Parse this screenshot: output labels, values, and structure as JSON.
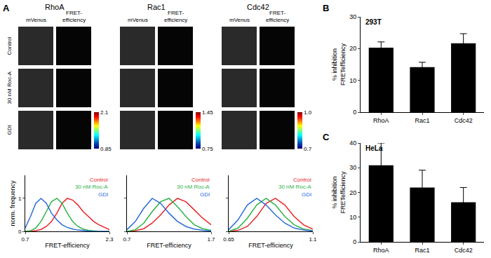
{
  "chart_data": [
    {
      "type": "image",
      "label": "A",
      "title": "RhoA",
      "columns": [
        "mVenus",
        "FRET-efficiency"
      ],
      "rows": [
        "Control",
        "30 nM Roc-A",
        "GDI"
      ],
      "colorbar": {
        "range": [
          0.85,
          2.1
        ],
        "ticks": [
          0.85,
          2.1
        ]
      }
    },
    {
      "type": "image",
      "title": "Rac1",
      "columns": [
        "mVenus",
        "FRET-efficiency"
      ],
      "colorbar": {
        "range": [
          0.75,
          1.45
        ],
        "ticks": [
          0.75,
          1.45
        ]
      }
    },
    {
      "type": "image",
      "title": "Cdc42",
      "columns": [
        "mVenus",
        "FRET-efficiency"
      ],
      "colorbar": {
        "range": [
          0.7,
          1.0
        ],
        "ticks": [
          0.7,
          {
            "value": 1,
            "label": "1.0"
          }
        ]
      }
    },
    {
      "type": "line",
      "x": [
        0.7,
        0.8,
        0.9,
        1.0,
        1.1,
        1.2,
        1.3,
        1.4,
        1.5,
        1.6,
        1.7,
        1.8,
        1.9,
        2.0,
        2.1,
        2.2,
        2.3
      ],
      "series": [
        {
          "name": "Control",
          "color": "#e8262a",
          "values": [
            0,
            0,
            0.02,
            0.06,
            0.15,
            0.3,
            0.55,
            0.85,
            1.0,
            0.95,
            0.8,
            0.6,
            0.45,
            0.3,
            0.2,
            0.12,
            0.05
          ]
        },
        {
          "name": "30 nM Roc-A",
          "color": "#2eb34a",
          "values": [
            0,
            0.02,
            0.1,
            0.3,
            0.6,
            0.9,
            1.0,
            0.85,
            0.55,
            0.3,
            0.15,
            0.07,
            0.03,
            0.01,
            0,
            0,
            0
          ]
        },
        {
          "name": "GDI",
          "color": "#2b6cd8",
          "values": [
            0.1,
            0.45,
            0.85,
            1.0,
            0.85,
            0.55,
            0.35,
            0.2,
            0.12,
            0.07,
            0.04,
            0.02,
            0.01,
            0,
            0,
            0,
            0
          ]
        }
      ],
      "xlim": [
        0.7,
        2.3
      ],
      "xticks": [
        0.7,
        2.3
      ],
      "ylim": [
        0,
        1.7
      ],
      "yticks": [
        0,
        1
      ],
      "xlabel": "FRET-efficiency",
      "ylabel": "norm. frequency"
    },
    {
      "type": "line",
      "x": [
        0.7,
        0.8,
        0.9,
        1.0,
        1.1,
        1.2,
        1.3,
        1.4,
        1.5,
        1.6,
        1.7
      ],
      "series": [
        {
          "name": "Control",
          "color": "#e8262a",
          "values": [
            0,
            0.02,
            0.08,
            0.25,
            0.5,
            0.8,
            1.0,
            0.9,
            0.65,
            0.4,
            0.2
          ]
        },
        {
          "name": "30 nM Roc-A",
          "color": "#2eb34a",
          "values": [
            0,
            0.05,
            0.25,
            0.6,
            0.9,
            1.0,
            0.75,
            0.45,
            0.2,
            0.08,
            0.03
          ]
        },
        {
          "name": "GDI",
          "color": "#2b6cd8",
          "values": [
            0.05,
            0.3,
            0.7,
            1.0,
            0.85,
            0.55,
            0.3,
            0.15,
            0.07,
            0.03,
            0.01
          ]
        }
      ],
      "xlim": [
        0.7,
        1.7
      ],
      "xticks": [
        0.7,
        1.7
      ],
      "ylim": [
        0,
        1.7
      ],
      "yticks": [
        0,
        1
      ],
      "tick_labels": "x",
      "xlabel": "FRET-efficiency"
    },
    {
      "type": "line",
      "x": [
        0.65,
        0.7,
        0.75,
        0.8,
        0.85,
        0.9,
        0.95,
        1.0,
        1.05,
        1.1
      ],
      "series": [
        {
          "name": "Control",
          "color": "#e8262a",
          "values": [
            0,
            0.03,
            0.15,
            0.45,
            0.85,
            1.0,
            0.8,
            0.45,
            0.2,
            0.07
          ]
        },
        {
          "name": "30 nM Roc-A",
          "color": "#2eb34a",
          "values": [
            0,
            0.1,
            0.4,
            0.8,
            1.0,
            0.8,
            0.45,
            0.2,
            0.07,
            0.02
          ]
        },
        {
          "name": "GDI",
          "color": "#2b6cd8",
          "values": [
            0.05,
            0.35,
            0.8,
            1.0,
            0.8,
            0.5,
            0.25,
            0.1,
            0.04,
            0.01
          ]
        }
      ],
      "xlim": [
        0.65,
        1.1
      ],
      "xticks": [
        0.65,
        1.1
      ],
      "ylim": [
        0,
        1.7
      ],
      "yticks": [
        0,
        1
      ],
      "tick_labels": "x",
      "xlabel": "FRET-efficiency"
    },
    {
      "type": "bar",
      "label": "B",
      "title": "293T",
      "categories": [
        "RhoA",
        "Rac1",
        "Cdc42"
      ],
      "values": [
        20.3,
        14.2,
        21.7
      ],
      "errors": [
        1.8,
        1.5,
        3.0
      ],
      "color": "#000000",
      "ylim": [
        0,
        30
      ],
      "yticks": [
        0,
        10,
        20,
        30
      ],
      "ylabel": "% inhibition FRETefficiency"
    },
    {
      "type": "bar",
      "label": "C",
      "title": "HeLa",
      "categories": [
        "RhoA",
        "Rac1",
        "Cdc42"
      ],
      "values": [
        31,
        22,
        16
      ],
      "errors": [
        9,
        7,
        6
      ],
      "color": "#000000",
      "ylim": [
        0,
        40
      ],
      "yticks": [
        0,
        10,
        20,
        30,
        40
      ],
      "ylabel": "% inhibition FRETefficiency"
    }
  ]
}
